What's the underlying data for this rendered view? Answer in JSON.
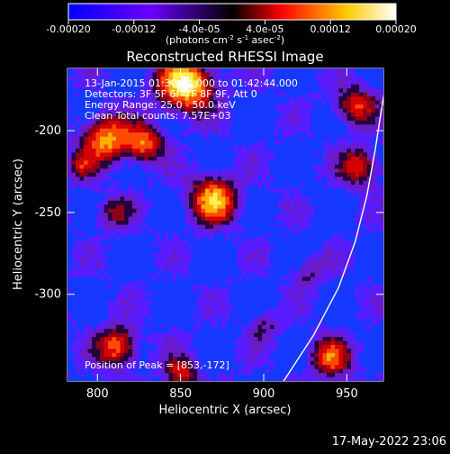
{
  "chart_data": {
    "type": "heatmap",
    "title": "Reconstructed RHESSI Image",
    "xlabel": "Heliocentric X (arcsec)",
    "ylabel": "Heliocentric Y (arcsec)",
    "xlim": [
      782,
      972
    ],
    "ylim": [
      -353,
      -162
    ],
    "x_ticks": [
      800,
      850,
      900,
      950
    ],
    "y_ticks": [
      -200,
      -250,
      -300
    ],
    "annotations": [
      "13-Jan-2015 01:30:44.000 to 01:42:44.000",
      "Detectors: 3F 5F 6F 7F 8F 9F, Att 0",
      "Energy Range: 25.0 - 50.0 keV",
      "Clean     Total counts: 7.57E+03"
    ],
    "peak_label": "Position of Peak = [853,-172]",
    "peak": [
      853,
      -172
    ],
    "colorbar": {
      "min": -0.0002,
      "max": 0.0002,
      "ticks": [
        -0.0002,
        -0.00012,
        -4e-05,
        4e-05,
        0.00012,
        0.0002
      ],
      "tick_labels": [
        "-0.00020",
        "-0.00012",
        "-4.0e-05",
        "4.0e-05",
        "0.00012",
        "0.00020"
      ],
      "unit_label": "(photons cm",
      "unit_sup1": "-2",
      "unit_mid": " s",
      "unit_sup2": "-1",
      "unit_end": " asec",
      "unit_sup3": "-2",
      "unit_close": ")"
    },
    "limb": {
      "points": [
        [
          912,
          -353
        ],
        [
          930,
          -325
        ],
        [
          945,
          -296
        ],
        [
          955,
          -268
        ],
        [
          962,
          -240
        ],
        [
          967,
          -212
        ],
        [
          971,
          -186
        ],
        [
          975,
          -162
        ]
      ]
    },
    "grid": false,
    "colormap": [
      "#0000ff",
      "#7a00ff",
      "#ff0000",
      "#ffff00",
      "#ffffff"
    ]
  },
  "timestamp": "17-May-2022 23:06"
}
